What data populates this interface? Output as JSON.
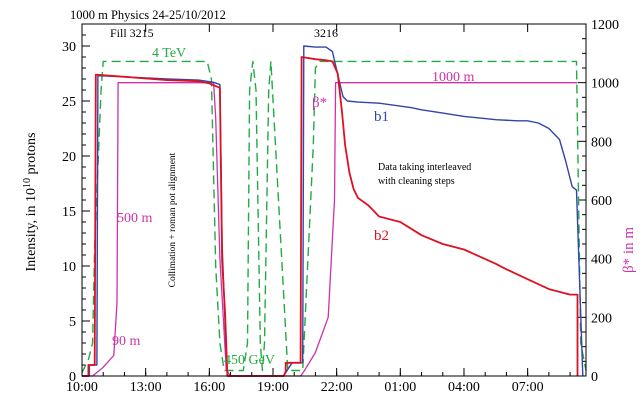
{
  "chart_data": {
    "type": "line",
    "title": "1000 m Physics 24-25/10/2012",
    "ylabel_left": "Intensity,  in 10",
    "ylabel_left_sup": "10",
    "ylabel_left_tail": " protons",
    "ylabel_right": "β* in m",
    "xlim": [
      10.0,
      33.75
    ],
    "ylim_left": [
      0,
      32
    ],
    "ylim_right": [
      0,
      1200
    ],
    "x_ticks": [
      10,
      13,
      16,
      19,
      22,
      25,
      28,
      31
    ],
    "x_tick_labels": [
      "10:00",
      "13:00",
      "16:00",
      "19:00",
      "22:00",
      "01:00",
      "04:00",
      "07:00"
    ],
    "y_left_ticks": [
      0,
      5,
      10,
      15,
      20,
      25,
      30
    ],
    "y_left_tick_labels": [
      "0",
      "5",
      "10",
      "15",
      "20",
      "25",
      "30"
    ],
    "y_right_ticks": [
      0,
      200,
      400,
      600,
      800,
      1000,
      1200
    ],
    "y_right_tick_labels": [
      "0",
      "200",
      "400",
      "600",
      "800",
      "1000",
      "1200"
    ],
    "grid": false,
    "annotations": {
      "fill_a": "Fill 3215",
      "fill_b": "3216",
      "energy_top": "4 TeV",
      "energy_bottom": "450 GeV",
      "beta_1000": "1000 m",
      "beta_500": "500 m",
      "beta_90": "90 m",
      "beta_star": "β*",
      "b1": "b1",
      "b2": "b2",
      "collimation": "Collimation + roman pot alignment",
      "data_taking_1": "Data taking interleaved",
      "data_taking_2": "with cleaning steps"
    },
    "colors": {
      "b1": "#3344aa",
      "b2": "#dd1122",
      "energy": "#22aa44",
      "beta": "#cc33aa"
    },
    "series": [
      {
        "key": "b1",
        "axis": "left",
        "x": [
          10.0,
          10.35,
          10.35,
          10.7,
          10.75,
          12.0,
          14.0,
          15.5,
          16.2,
          16.5,
          16.6,
          16.75,
          16.85,
          19.5,
          19.9,
          19.9,
          20.4,
          20.45,
          21.0,
          21.5,
          21.8,
          22.1,
          22.3,
          22.5,
          23.0,
          24.0,
          25.5,
          26.0,
          27.0,
          28.0,
          29.0,
          29.5,
          30.5,
          31.0,
          31.5,
          32.0,
          32.5,
          32.8,
          33.1,
          33.3,
          33.6
        ],
        "y": [
          0,
          0,
          1,
          1,
          27.3,
          27.2,
          27.0,
          26.9,
          26.7,
          26.5,
          12.0,
          4.5,
          0,
          0,
          1.2,
          1.2,
          1.2,
          30.0,
          29.9,
          29.9,
          29.5,
          27.0,
          25.4,
          25.0,
          24.9,
          24.8,
          24.4,
          24.2,
          23.9,
          23.6,
          23.4,
          23.3,
          23.2,
          23.2,
          23.0,
          22.5,
          21.5,
          19.5,
          17.2,
          16.9,
          0
        ]
      },
      {
        "key": "b2",
        "axis": "left",
        "x": [
          10.0,
          10.3,
          10.3,
          10.6,
          10.65,
          12.0,
          14.0,
          15.5,
          16.0,
          16.5,
          16.6,
          16.75,
          16.85,
          19.5,
          19.6,
          19.6,
          20.3,
          20.35,
          21.0,
          21.5,
          21.8,
          22.05,
          22.25,
          22.4,
          22.6,
          22.8,
          23.0,
          23.5,
          24.0,
          25.0,
          26.0,
          27.0,
          28.0,
          29.5,
          30.0,
          31.0,
          32.0,
          33.0,
          33.35,
          33.35
        ],
        "y": [
          0,
          0,
          1,
          1,
          27.4,
          27.2,
          26.9,
          26.8,
          26.6,
          26.2,
          10.5,
          5.5,
          0,
          0,
          0.4,
          1.2,
          1.2,
          29.0,
          28.8,
          28.7,
          28.6,
          27.5,
          24.0,
          21.0,
          18.5,
          17.0,
          16.2,
          15.5,
          14.5,
          14.0,
          12.8,
          12.0,
          11.5,
          10.2,
          9.7,
          8.8,
          7.9,
          7.4,
          7.4,
          0
        ]
      },
      {
        "key": "energy",
        "axis": "left",
        "dashed": true,
        "x": [
          10.0,
          10.3,
          10.5,
          10.6,
          10.9,
          11.0,
          15.9,
          16.1,
          16.3,
          16.5,
          16.7,
          17.6,
          17.8,
          17.9,
          18.05,
          18.2,
          18.4,
          18.5,
          18.6,
          18.8,
          18.9,
          19.7,
          20.4,
          20.9,
          21.0,
          21.2,
          33.3,
          33.5,
          33.75
        ],
        "y": [
          0.3,
          1.5,
          3.0,
          12.0,
          26.0,
          28.6,
          28.6,
          27.0,
          10.0,
          3.0,
          0.5,
          0.5,
          3.0,
          26.0,
          28.6,
          26.0,
          3.0,
          0.5,
          3.0,
          26.0,
          28.6,
          0.5,
          0.5,
          21.0,
          28.0,
          28.6,
          28.6,
          3.0,
          0.5
        ]
      },
      {
        "key": "beta",
        "axis": "right",
        "x": [
          10.0,
          10.5,
          11.0,
          11.5,
          11.65,
          11.7,
          16.2,
          16.3,
          16.5,
          16.8,
          17.0,
          20.3,
          20.5,
          21.0,
          21.6,
          21.9,
          21.95,
          33.35
        ],
        "y": [
          0,
          0,
          30,
          70,
          250,
          1000,
          1000,
          880,
          400,
          20,
          0,
          0,
          20,
          80,
          200,
          600,
          1000,
          1000
        ]
      }
    ]
  }
}
